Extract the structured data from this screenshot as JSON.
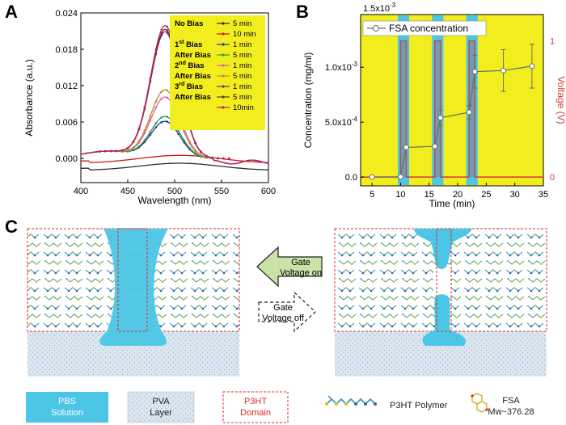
{
  "panels": {
    "a": "A",
    "b": "B",
    "c": "C"
  },
  "colors": {
    "yellow": "#f2ee1e",
    "cyan": "#4bc6e6",
    "red": "#d23a3a",
    "grey": "#6b6b6b"
  },
  "chart_data": [
    {
      "type": "line",
      "id": "A",
      "xlabel": "Wavelength (nm)",
      "ylabel": "Absorbance (a.u.)",
      "xlim": [
        400,
        600
      ],
      "ylim": [
        -0.004,
        0.024
      ],
      "xticks": [
        "400",
        "450",
        "500",
        "550",
        "600"
      ],
      "yticks": [
        "0.000",
        "0.006",
        "0.012",
        "0.018",
        "0.024"
      ],
      "legend_groups": [
        {
          "group": "No Bias",
          "entries": [
            {
              "label": "5  min",
              "color": "#2b2b2b"
            },
            {
              "label": "10 min",
              "color": "#d01818"
            }
          ]
        },
        {
          "group": "1st Bias",
          "entries": [
            {
              "label": "1 min",
              "color": "#1a3a8a"
            }
          ]
        },
        {
          "group": "After Bias",
          "entries": [
            {
              "label": "5 min",
              "color": "#2a9c4a"
            }
          ]
        },
        {
          "group": "2nd Bias",
          "entries": [
            {
              "label": "1 min",
              "color": "#e060a0"
            }
          ]
        },
        {
          "group": "After Bias",
          "entries": [
            {
              "label": "5 min",
              "color": "#c08a2a"
            }
          ]
        },
        {
          "group": "3rd Bias",
          "entries": [
            {
              "label": "1 min",
              "color": "#7a2a7a"
            }
          ]
        },
        {
          "group": "After Bias",
          "entries": [
            {
              "label": "5 min",
              "color": "#5a3a2a"
            },
            {
              "label": "10min",
              "color": "#c02060"
            }
          ]
        }
      ],
      "series": [
        {
          "name": "No Bias 5 min",
          "color": "#2b2b2b",
          "peak": -0.0008
        },
        {
          "name": "No Bias 10 min",
          "color": "#d01818",
          "peak": 0.0005
        },
        {
          "name": "1st Bias 1 min",
          "color": "#1a3a8a",
          "peak": 0.006
        },
        {
          "name": "After Bias 5 min",
          "color": "#2a9c4a",
          "peak": 0.0068
        },
        {
          "name": "2nd Bias 1 min",
          "color": "#e060a0",
          "peak": 0.01
        },
        {
          "name": "After Bias 5 min",
          "color": "#c08a2a",
          "peak": 0.0112
        },
        {
          "name": "3rd Bias 1 min",
          "color": "#7a2a7a",
          "peak": 0.0208
        },
        {
          "name": "After Bias 5 min",
          "color": "#5a3a2a",
          "peak": 0.0212
        },
        {
          "name": "After Bias 10min",
          "color": "#c02060",
          "peak": 0.0218
        }
      ]
    },
    {
      "type": "line",
      "id": "B",
      "xlabel": "Time (min)",
      "ylabel": "Concentration (mg/ml)",
      "y2label": "Voltage (V)",
      "exponent": "1.5x10",
      "exponent_sup": "-3",
      "xlim": [
        3,
        35
      ],
      "ylim": [
        -8e-05,
        0.00148
      ],
      "xticks": [
        "5",
        "10",
        "15",
        "20",
        "25",
        "30",
        "35"
      ],
      "yticks": [
        "0.0",
        "5.0x10",
        "1.0x10"
      ],
      "ytick_sups": [
        "",
        "-4",
        "-3"
      ],
      "y2ticks": [
        "0",
        "1"
      ],
      "legend": "FSA concentration",
      "series": [
        {
          "name": "FSA concentration",
          "x": [
            5,
            10,
            11,
            16,
            17,
            22,
            23,
            28,
            33
          ],
          "y": [
            0.0,
            2e-06,
            0.00027,
            0.00028,
            0.00054,
            0.00059,
            0.00096,
            0.00097,
            0.00101
          ],
          "err": [
            0,
            0,
            0,
            0,
            7e-05,
            6e-05,
            0.00015,
            0.00019,
            0.0002
          ]
        }
      ],
      "bias_intervals": [
        [
          10,
          11
        ],
        [
          16,
          17
        ],
        [
          22,
          23
        ]
      ],
      "voltage_low": 0,
      "voltage_high": 1
    }
  ],
  "diagram": {
    "arrow_on": [
      "Gate",
      "Voltage on"
    ],
    "arrow_off": [
      "Gate",
      "Voltage off"
    ],
    "legend": {
      "pbs": [
        "PBS",
        "Solution"
      ],
      "pva": [
        "PVA",
        "Layer"
      ],
      "p3ht": [
        "P3HT",
        "Domain"
      ],
      "polymer": "P3HT Polymer",
      "fsa": "FSA",
      "fsa_mw": "Mw~376.28"
    }
  }
}
